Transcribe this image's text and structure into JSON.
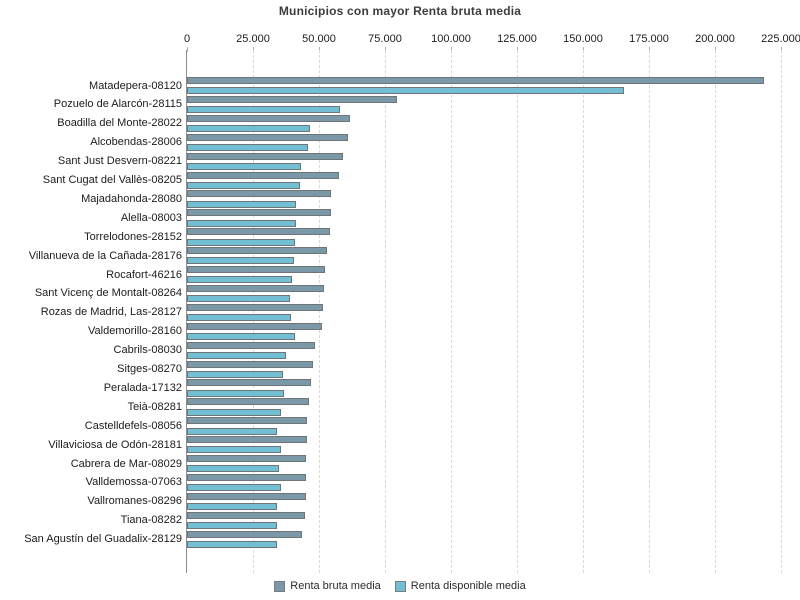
{
  "chart_data": {
    "type": "bar",
    "orientation": "horizontal",
    "title": "Municipios con mayor Renta bruta media",
    "categories": [
      "Matadepera-08120",
      "Pozuelo de Alarcón-28115",
      "Boadilla del Monte-28022",
      "Alcobendas-28006",
      "Sant Just Desvern-08221",
      "Sant Cugat del Vallès-08205",
      "Majadahonda-28080",
      "Alella-08003",
      "Torrelodones-28152",
      "Villanueva de la Cañada-28176",
      "Rocafort-46216",
      "Sant Vicenç de Montalt-08264",
      "Rozas de Madrid, Las-28127",
      "Valdemorillo-28160",
      "Cabrils-08030",
      "Sitges-08270",
      "Peralada-17132",
      "Teià-08281",
      "Castelldefels-08056",
      "Villaviciosa de Odón-28181",
      "Cabrera de Mar-08029",
      "Valldemossa-07063",
      "Vallromanes-08296",
      "Tiana-08282",
      "San Agustín del Guadalix-28129"
    ],
    "series": [
      {
        "name": "Renta bruta media",
        "color": "#7b98a8",
        "border_color": "#6f7477",
        "values": [
          218500,
          79500,
          61700,
          61000,
          59000,
          57500,
          54400,
          54400,
          54100,
          53000,
          52400,
          51900,
          51500,
          51000,
          48600,
          47800,
          46900,
          46200,
          45300,
          45300,
          45000,
          45000,
          45000,
          44700,
          43700
        ]
      },
      {
        "name": "Renta disponible media",
        "color": "#72bed2",
        "border_color": "#6f7477",
        "values": [
          165500,
          58000,
          46600,
          45700,
          43100,
          42900,
          41400,
          41400,
          41000,
          40600,
          39700,
          39100,
          39500,
          40800,
          37400,
          36500,
          36600,
          35500,
          34000,
          35600,
          34700,
          35600,
          34200,
          34000,
          34000
        ]
      }
    ],
    "x_axis": {
      "min": 0,
      "max": 225000,
      "tick_interval": 25000,
      "tick_labels": [
        "0",
        "25.000",
        "50.000",
        "75.000",
        "100.000",
        "125.000",
        "150.000",
        "175.000",
        "200.000",
        "225.000"
      ],
      "position": "top"
    },
    "y_axis": {
      "line_color": "#8f8f8f"
    },
    "grid": "vertical-dashed",
    "gridline_color": "#d9d9d9",
    "legend_position": "bottom",
    "background_color": "#ffffff"
  }
}
